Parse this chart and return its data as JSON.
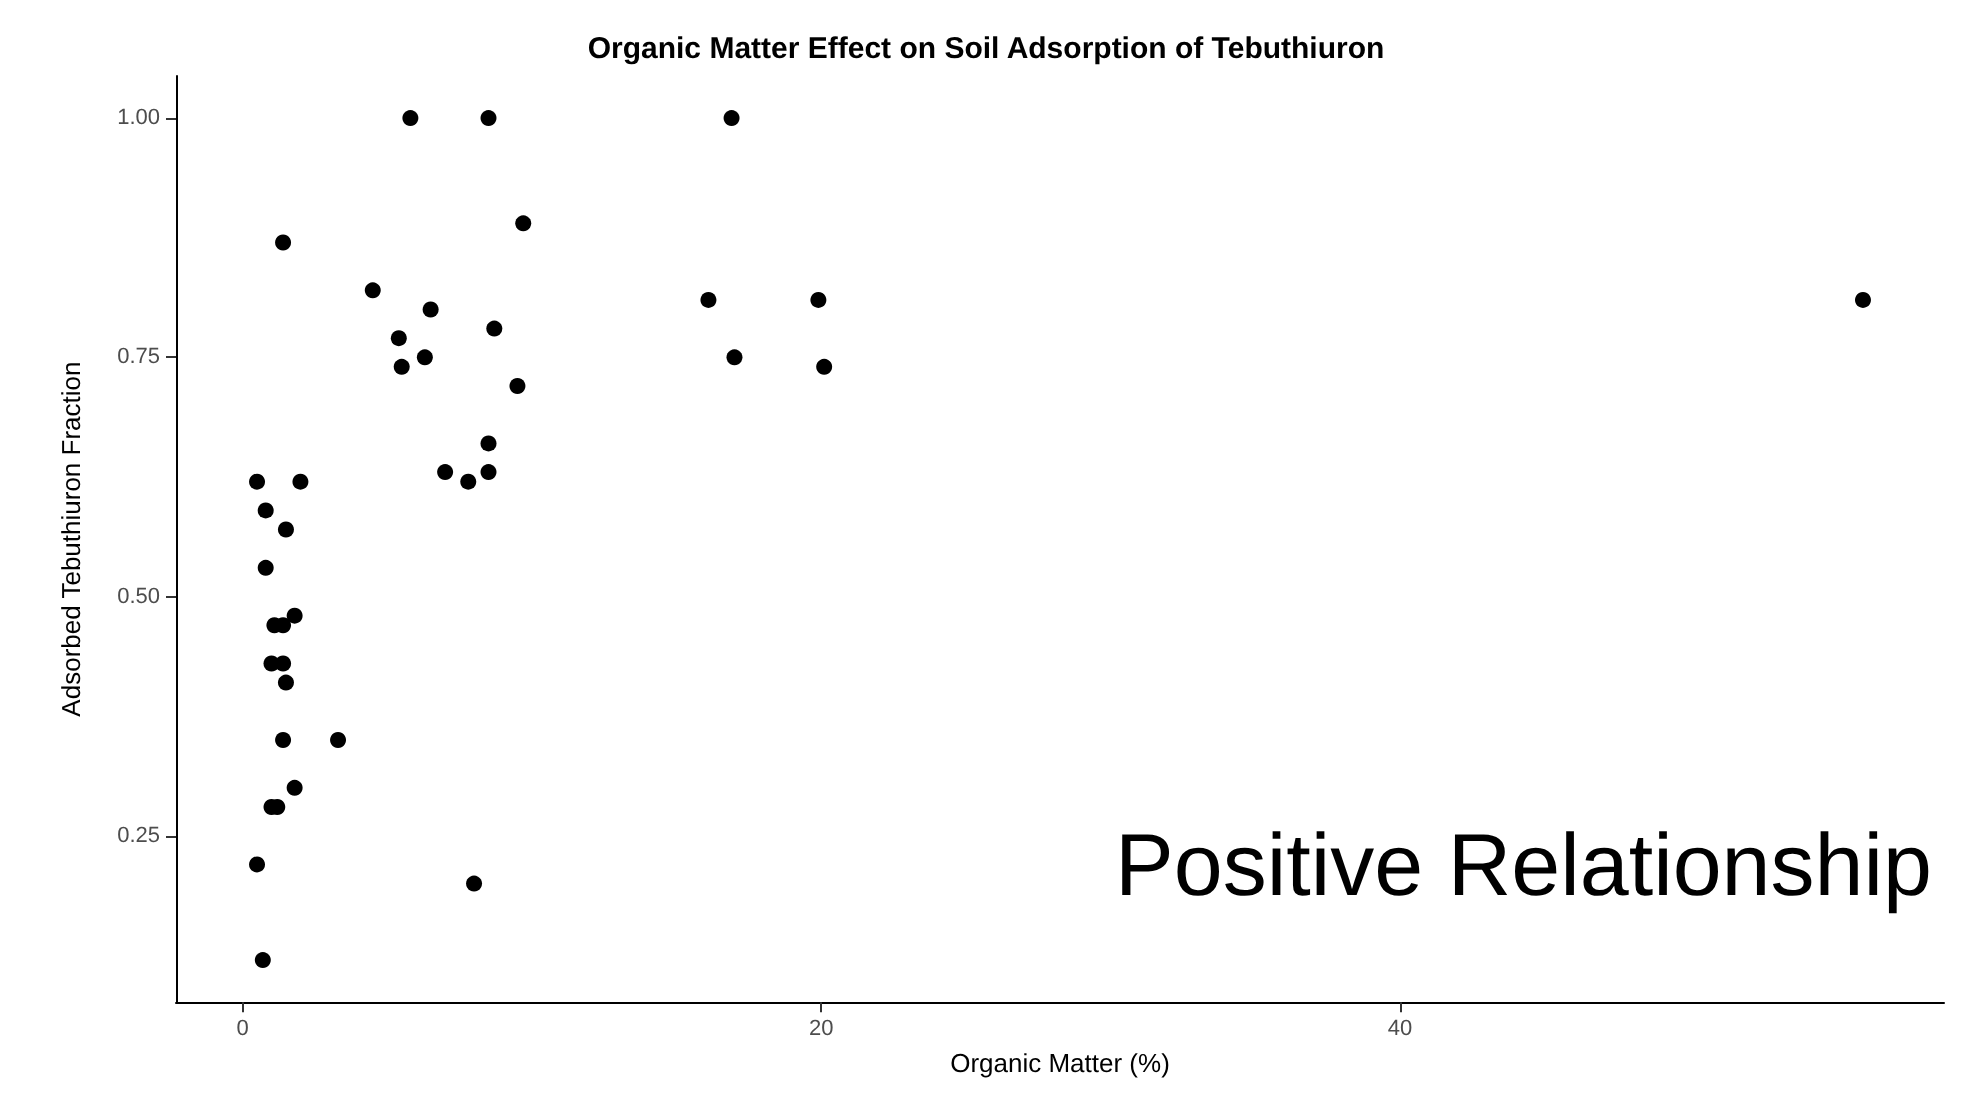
{
  "chart_data": {
    "type": "scatter",
    "title": "Organic Matter Effect on Soil Adsorption of Tebuthiuron",
    "xlabel": "Organic Matter (%)",
    "ylabel": "Adsorbed Tebuthiuron Fraction",
    "annotations": [
      "Positive Relationship"
    ],
    "x": [
      5.8,
      8.5,
      16.9,
      1.4,
      9.7,
      4.5,
      6.5,
      5.4,
      6.3,
      5.5,
      8.7,
      9.5,
      8.5,
      7.0,
      8.5,
      7.8,
      0.5,
      2.0,
      0.8,
      1.5,
      0.8,
      1.8,
      1.1,
      1.4,
      1.0,
      1.4,
      1.5,
      1.4,
      3.3,
      1.8,
      1.0,
      1.2,
      0.5,
      8.0,
      0.7,
      16.1,
      19.9,
      17.0,
      20.1,
      56.0
    ],
    "values": [
      1.0,
      1.0,
      1.0,
      0.87,
      0.89,
      0.82,
      0.8,
      0.77,
      0.75,
      0.74,
      0.78,
      0.72,
      0.66,
      0.63,
      0.63,
      0.62,
      0.62,
      0.62,
      0.59,
      0.57,
      0.53,
      0.48,
      0.47,
      0.47,
      0.43,
      0.43,
      0.41,
      0.35,
      0.35,
      0.3,
      0.28,
      0.28,
      0.22,
      0.2,
      0.12,
      0.81,
      0.81,
      0.75,
      0.74,
      0.81
    ],
    "color": "#000000",
    "marker": "circle",
    "grid": false,
    "xlim": [
      -2.3,
      58.8
    ],
    "xticks": [
      0,
      20,
      40
    ],
    "ylim": [
      0.076,
      1.044
    ],
    "yticks": [
      {
        "value": 0.25,
        "label": "0.25"
      },
      {
        "value": 0.5,
        "label": "0.50"
      },
      {
        "value": 0.75,
        "label": "0.75"
      },
      {
        "value": 1.0,
        "label": "1.00"
      }
    ]
  }
}
